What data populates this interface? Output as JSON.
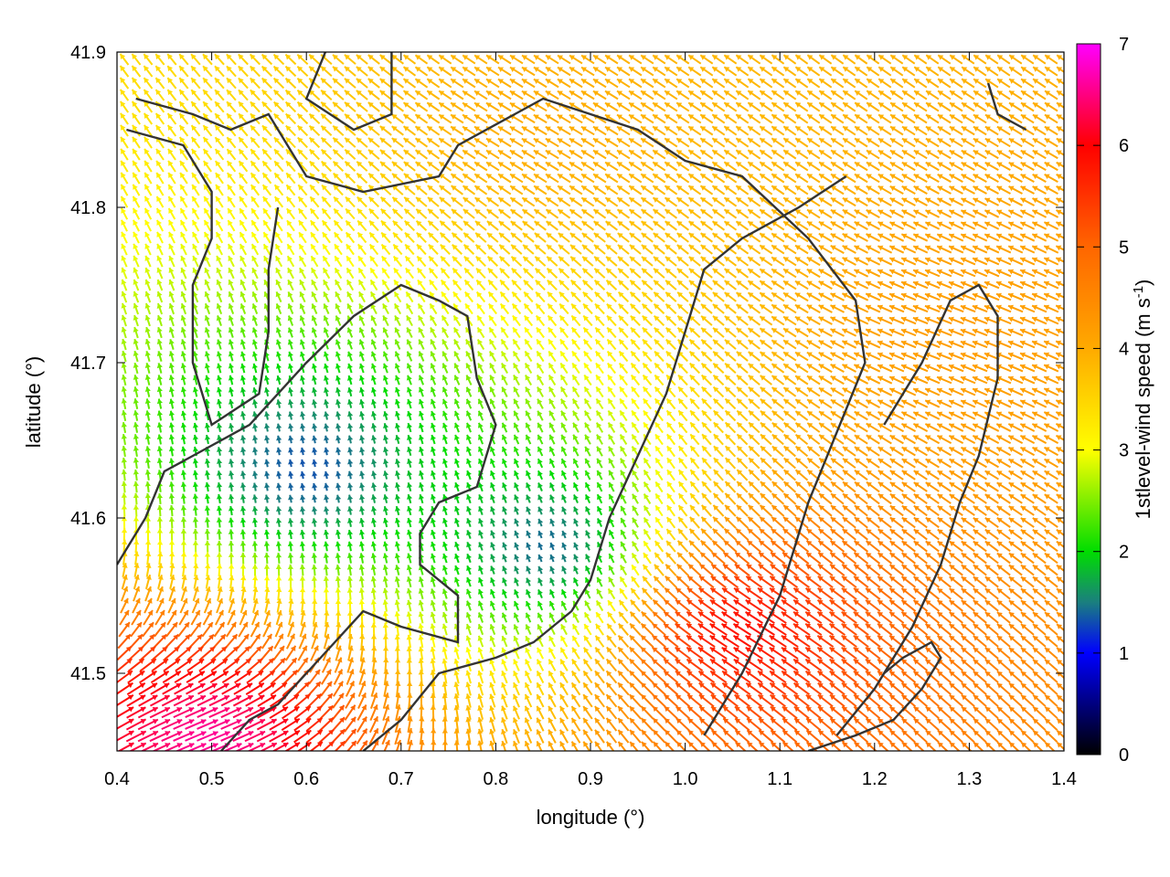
{
  "chart_data": {
    "type": "vector-field",
    "xlabel": "longitude (°)",
    "ylabel": "latitude (°)",
    "colorbar_label": "1stlevel-wind speed (m s",
    "colorbar_label_sup": "-1",
    "colorbar_label_close": ")",
    "xlim": [
      0.4,
      1.4
    ],
    "ylim": [
      41.45,
      41.9
    ],
    "x_ticks": [
      {
        "value": 0.4,
        "label": "0.4"
      },
      {
        "value": 0.5,
        "label": "0.5"
      },
      {
        "value": 0.6,
        "label": "0.6"
      },
      {
        "value": 0.7,
        "label": "0.7"
      },
      {
        "value": 0.8,
        "label": "0.8"
      },
      {
        "value": 0.9,
        "label": "0.9"
      },
      {
        "value": 1.0,
        "label": "1.0"
      },
      {
        "value": 1.1,
        "label": "1.1"
      },
      {
        "value": 1.2,
        "label": "1.2"
      },
      {
        "value": 1.3,
        "label": "1.3"
      },
      {
        "value": 1.4,
        "label": "1.4"
      }
    ],
    "y_ticks": [
      {
        "value": 41.5,
        "label": "41.5"
      },
      {
        "value": 41.6,
        "label": "41.6"
      },
      {
        "value": 41.7,
        "label": "41.7"
      },
      {
        "value": 41.8,
        "label": "41.8"
      },
      {
        "value": 41.9,
        "label": "41.9"
      }
    ],
    "colorbar": {
      "range": [
        0,
        7
      ],
      "ticks": [
        {
          "value": 0,
          "label": "0"
        },
        {
          "value": 1,
          "label": "1"
        },
        {
          "value": 2,
          "label": "2"
        },
        {
          "value": 3,
          "label": "3"
        },
        {
          "value": 4,
          "label": "4"
        },
        {
          "value": 5,
          "label": "5"
        },
        {
          "value": 6,
          "label": "6"
        },
        {
          "value": 7,
          "label": "7"
        }
      ],
      "stops": [
        {
          "value": 0,
          "color": "#000000"
        },
        {
          "value": 1,
          "color": "#0000ff"
        },
        {
          "value": 1.5,
          "color": "#1a7f7f"
        },
        {
          "value": 2,
          "color": "#00dd00"
        },
        {
          "value": 3,
          "color": "#ffff00"
        },
        {
          "value": 4,
          "color": "#ffaa00"
        },
        {
          "value": 5,
          "color": "#ff6600"
        },
        {
          "value": 6,
          "color": "#ff0000"
        },
        {
          "value": 7,
          "color": "#ff00ff"
        }
      ]
    },
    "wind_regions": [
      {
        "name": "north-easterly-orange-band",
        "lon": 0.85,
        "lat": 41.85,
        "speed": 4.0,
        "direction_deg": 150
      },
      {
        "name": "southeast-orange-zone",
        "lon": 1.28,
        "lat": 41.72,
        "speed": 4.2,
        "direction_deg": 160
      },
      {
        "name": "southern-red-core",
        "lon": 1.05,
        "lat": 41.53,
        "speed": 6.2,
        "direction_deg": 150
      },
      {
        "name": "southwest-magenta-spot",
        "lon": 0.5,
        "lat": 41.46,
        "speed": 6.8,
        "direction_deg": 20
      },
      {
        "name": "central-calm-zone",
        "lon": 0.86,
        "lat": 41.58,
        "speed": 1.0,
        "direction_deg": 110
      },
      {
        "name": "western-calm-zone",
        "lon": 0.6,
        "lat": 41.63,
        "speed": 1.1,
        "direction_deg": 100
      }
    ],
    "contours": [
      [
        [
          0.62,
          41.9
        ],
        [
          0.6,
          41.87
        ],
        [
          0.65,
          41.85
        ],
        [
          0.69,
          41.86
        ],
        [
          0.69,
          41.89
        ],
        [
          0.69,
          41.9
        ]
      ],
      [
        [
          0.42,
          41.87
        ],
        [
          0.48,
          41.86
        ],
        [
          0.52,
          41.85
        ],
        [
          0.56,
          41.86
        ],
        [
          0.6,
          41.82
        ],
        [
          0.66,
          41.81
        ],
        [
          0.74,
          41.82
        ],
        [
          0.76,
          41.84
        ],
        [
          0.82,
          41.86
        ],
        [
          0.85,
          41.87
        ],
        [
          0.9,
          41.86
        ],
        [
          0.95,
          41.85
        ],
        [
          1.0,
          41.83
        ],
        [
          1.06,
          41.82
        ],
        [
          1.13,
          41.78
        ],
        [
          1.18,
          41.74
        ],
        [
          1.19,
          41.7
        ],
        [
          1.17,
          41.67
        ],
        [
          1.13,
          41.61
        ],
        [
          1.1,
          41.55
        ],
        [
          1.06,
          41.5
        ],
        [
          1.02,
          41.46
        ]
      ],
      [
        [
          0.41,
          41.85
        ],
        [
          0.47,
          41.84
        ],
        [
          0.5,
          41.81
        ],
        [
          0.5,
          41.78
        ],
        [
          0.48,
          41.75
        ],
        [
          0.48,
          41.7
        ],
        [
          0.5,
          41.66
        ],
        [
          0.55,
          41.68
        ],
        [
          0.56,
          41.72
        ],
        [
          0.56,
          41.76
        ],
        [
          0.57,
          41.8
        ]
      ],
      [
        [
          0.4,
          41.57
        ],
        [
          0.43,
          41.6
        ],
        [
          0.45,
          41.63
        ],
        [
          0.48,
          41.64
        ],
        [
          0.54,
          41.66
        ],
        [
          0.6,
          41.7
        ],
        [
          0.65,
          41.73
        ],
        [
          0.7,
          41.75
        ],
        [
          0.74,
          41.74
        ],
        [
          0.77,
          41.73
        ],
        [
          0.78,
          41.69
        ],
        [
          0.8,
          41.66
        ],
        [
          0.78,
          41.62
        ],
        [
          0.74,
          41.61
        ],
        [
          0.72,
          41.59
        ],
        [
          0.72,
          41.57
        ],
        [
          0.76,
          41.55
        ],
        [
          0.76,
          41.52
        ],
        [
          0.7,
          41.53
        ],
        [
          0.66,
          41.54
        ],
        [
          0.63,
          41.52
        ],
        [
          0.6,
          41.5
        ],
        [
          0.57,
          41.48
        ],
        [
          0.54,
          41.47
        ],
        [
          0.51,
          41.45
        ]
      ],
      [
        [
          0.66,
          41.45
        ],
        [
          0.7,
          41.47
        ],
        [
          0.74,
          41.5
        ],
        [
          0.8,
          41.51
        ],
        [
          0.84,
          41.52
        ],
        [
          0.88,
          41.54
        ],
        [
          0.9,
          41.56
        ],
        [
          0.92,
          41.6
        ],
        [
          0.95,
          41.64
        ],
        [
          0.98,
          41.68
        ],
        [
          1.0,
          41.72
        ],
        [
          1.02,
          41.76
        ],
        [
          1.06,
          41.78
        ],
        [
          1.12,
          41.8
        ],
        [
          1.17,
          41.82
        ]
      ],
      [
        [
          1.13,
          41.45
        ],
        [
          1.18,
          41.46
        ],
        [
          1.22,
          41.47
        ],
        [
          1.25,
          41.49
        ],
        [
          1.27,
          41.51
        ],
        [
          1.26,
          41.52
        ],
        [
          1.23,
          41.51
        ],
        [
          1.21,
          41.5
        ]
      ],
      [
        [
          1.32,
          41.88
        ],
        [
          1.33,
          41.86
        ],
        [
          1.36,
          41.85
        ]
      ],
      [
        [
          1.21,
          41.66
        ],
        [
          1.25,
          41.7
        ],
        [
          1.28,
          41.74
        ],
        [
          1.31,
          41.75
        ],
        [
          1.33,
          41.73
        ],
        [
          1.33,
          41.69
        ],
        [
          1.31,
          41.64
        ],
        [
          1.29,
          41.61
        ],
        [
          1.27,
          41.57
        ],
        [
          1.24,
          41.53
        ],
        [
          1.2,
          41.49
        ],
        [
          1.16,
          41.46
        ]
      ]
    ]
  }
}
